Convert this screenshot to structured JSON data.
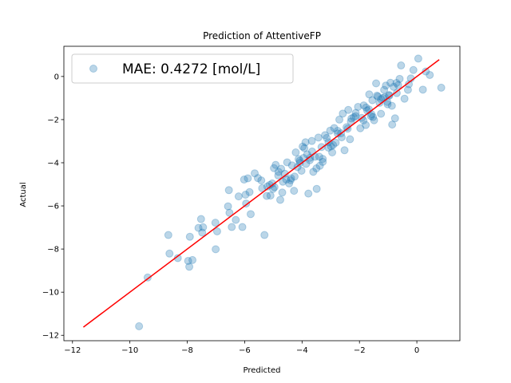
{
  "chart_data": {
    "type": "scatter",
    "title": "Prediction of AttentiveFP",
    "xlabel": "Predicted",
    "ylabel": "Actual",
    "xlim": [
      -12.3,
      1.5
    ],
    "ylim": [
      -12.25,
      1.4
    ],
    "xticks": [
      -12,
      -10,
      -8,
      -6,
      -4,
      -2,
      0
    ],
    "yticks": [
      -12,
      -10,
      -8,
      -6,
      -4,
      -2,
      0
    ],
    "xtick_labels": [
      "−12",
      "−10",
      "−8",
      "−6",
      "−4",
      "−2",
      "0"
    ],
    "ytick_labels": [
      "−12",
      "−10",
      "−8",
      "−6",
      "−4",
      "−2",
      "0"
    ],
    "grid": false,
    "legend_position": "top-left",
    "colors": {
      "points": "#1f77b4",
      "line": "#ff0000"
    },
    "series": [
      {
        "name": "MAE: 0.4272 [mol/L]",
        "kind": "scatter",
        "x": [
          -9.68,
          -9.38,
          -8.66,
          -8.62,
          -8.33,
          -7.97,
          -7.93,
          -7.91,
          -7.82,
          -7.61,
          -7.52,
          -7.48,
          -7.45,
          -7.01,
          -7.02,
          -6.96,
          -6.58,
          -6.55,
          -6.53,
          -6.45,
          -6.31,
          -6.21,
          -6.08,
          -6.02,
          -5.97,
          -5.95,
          -5.89,
          -5.79,
          -5.65,
          -5.54,
          -5.39,
          -5.31,
          -5.21,
          -5.13,
          -5.1,
          -5.04,
          -5.01,
          -4.98,
          -4.96,
          -4.92,
          -4.83,
          -4.76,
          -4.73,
          -4.69,
          -4.6,
          -4.52,
          -4.45,
          -4.4,
          -4.35,
          -4.28,
          -4.22,
          -4.16,
          -4.12,
          -4.08,
          -4.02,
          -3.98,
          -3.95,
          -3.88,
          -3.82,
          -3.78,
          -3.73,
          -3.66,
          -3.61,
          -3.55,
          -3.49,
          -3.43,
          -3.38,
          -3.32,
          -3.28,
          -3.2,
          -3.14,
          -3.08,
          -3.02,
          -2.95,
          -2.88,
          -2.83,
          -2.76,
          -2.7,
          -2.64,
          -2.58,
          -2.52,
          -2.45,
          -2.39,
          -2.33,
          -2.28,
          -2.2,
          -2.13,
          -2.05,
          -1.97,
          -1.92,
          -1.85,
          -1.78,
          -1.73,
          -1.66,
          -1.6,
          -1.55,
          -1.49,
          -1.42,
          -1.36,
          -1.3,
          -1.25,
          -1.19,
          -1.14,
          -1.08,
          -1.03,
          -0.97,
          -0.92,
          -0.86,
          -0.81,
          -0.76,
          -0.71,
          -0.65,
          -0.6,
          -0.55,
          -0.43,
          -0.31,
          -0.21,
          -0.12,
          0.05,
          0.21,
          0.31,
          0.45,
          0.85,
          -3.65,
          -3.92,
          -4.38,
          -2.92,
          -2.62,
          -1.77,
          -1.25,
          -0.87,
          -1.12,
          -1.53,
          -2.76,
          -3.28,
          -4.82,
          -5.42,
          -5.83,
          -4.08,
          -3.4,
          -2.41,
          -1.67,
          -0.96,
          -1.86,
          -2.99,
          -3.72,
          -4.26,
          -4.67,
          -5.23,
          -3.5,
          -2.13,
          -1.39,
          -0.7,
          -0.28,
          -3.08,
          -3.86,
          -2.3,
          -1.02,
          -4.55,
          -1.58
        ],
        "y": [
          -11.58,
          -9.32,
          -7.35,
          -8.21,
          -8.42,
          -8.55,
          -8.82,
          -7.43,
          -8.51,
          -7.02,
          -6.61,
          -7.24,
          -6.99,
          -8.01,
          -6.78,
          -7.18,
          -6.02,
          -5.27,
          -6.32,
          -6.98,
          -6.65,
          -5.56,
          -6.98,
          -4.78,
          -5.48,
          -5.89,
          -4.72,
          -6.38,
          -4.49,
          -4.71,
          -5.18,
          -7.35,
          -5.1,
          -5.03,
          -5.52,
          -4.96,
          -5.21,
          -4.25,
          -5.13,
          -4.1,
          -4.59,
          -5.72,
          -4.28,
          -5.38,
          -4.51,
          -3.98,
          -4.96,
          -4.81,
          -4.12,
          -5.3,
          -3.52,
          -4.2,
          -3.83,
          -4.01,
          -4.37,
          -3.25,
          -3.78,
          -3.05,
          -3.61,
          -5.43,
          -3.88,
          -2.99,
          -4.42,
          -3.72,
          -5.21,
          -2.83,
          -4.14,
          -3.27,
          -3.96,
          -2.72,
          -2.85,
          -3.3,
          -2.51,
          -3.52,
          -2.39,
          -3.07,
          -2.52,
          -2.0,
          -2.63,
          -1.72,
          -3.42,
          -2.35,
          -1.55,
          -2.91,
          -1.95,
          -1.89,
          -1.69,
          -1.41,
          -2.4,
          -1.92,
          -1.34,
          -2.25,
          -1.58,
          -0.83,
          -1.84,
          -1.1,
          -2.03,
          -0.32,
          -0.93,
          -1.22,
          -1.73,
          -1.0,
          -0.62,
          -0.42,
          -1.18,
          -0.86,
          -0.29,
          -2.23,
          -0.48,
          -1.94,
          -0.3,
          -0.4,
          -0.11,
          0.51,
          -1.03,
          -0.62,
          -0.09,
          0.3,
          0.83,
          -0.61,
          0.23,
          0.07,
          -0.52,
          -3.48,
          -3.32,
          -4.72,
          -3.18,
          -2.82,
          -1.44,
          -1.05,
          -1.36,
          -0.96,
          -1.88,
          -2.64,
          -3.82,
          -4.42,
          -4.82,
          -5.36,
          -3.91,
          -3.72,
          -2.42,
          -1.53,
          -0.89,
          -2.04,
          -3.24,
          -3.77,
          -4.64,
          -4.88,
          -5.54,
          -4.26,
          -1.84,
          -0.89,
          -0.77,
          -0.36,
          -3.05,
          -4.05,
          -2.09,
          -1.29,
          -4.78,
          -1.75
        ]
      },
      {
        "name": "",
        "kind": "line",
        "x": [
          -11.62,
          0.78
        ],
        "y": [
          -11.62,
          0.78
        ]
      }
    ]
  }
}
